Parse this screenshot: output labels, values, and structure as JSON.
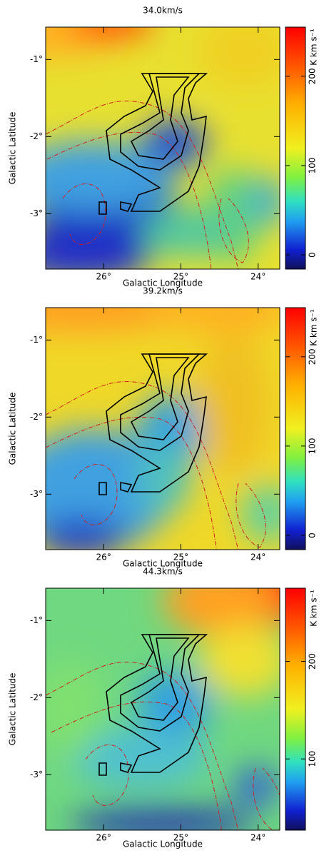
{
  "chart_data": [
    {
      "type": "heatmap",
      "title": "34.0km/s",
      "x_label": "Galactic Longitude",
      "y_label": "Galactic Latitude",
      "xlim": [
        26.75,
        23.72
      ],
      "ylim": [
        -3.72,
        -0.58
      ],
      "xticks": [
        {
          "value": 26,
          "label": "26°"
        },
        {
          "value": 25,
          "label": "25°"
        },
        {
          "value": 24,
          "label": "24°"
        }
      ],
      "yticks": [
        {
          "value": -1,
          "label": "-1°"
        },
        {
          "value": -2,
          "label": "-2°"
        },
        {
          "value": -3,
          "label": "-3°"
        }
      ],
      "colorbar": {
        "label": "K km s⁻¹",
        "lim": [
          -16,
          255
        ],
        "ticks": [
          0,
          100,
          200
        ]
      }
    },
    {
      "type": "heatmap",
      "title": "39.2km/s",
      "x_label": "Galactic Longitude",
      "y_label": "Galactic Latitude",
      "xlim": [
        26.75,
        23.72
      ],
      "ylim": [
        -3.72,
        -0.58
      ],
      "xticks": [
        {
          "value": 26,
          "label": "26°"
        },
        {
          "value": 25,
          "label": "25°"
        },
        {
          "value": 24,
          "label": "24°"
        }
      ],
      "yticks": [
        {
          "value": -1,
          "label": "-1°"
        },
        {
          "value": -2,
          "label": "-2°"
        },
        {
          "value": -3,
          "label": "-3°"
        }
      ],
      "colorbar": {
        "label": "K km s⁻¹",
        "lim": [
          -16,
          255
        ],
        "ticks": [
          0,
          100,
          200
        ]
      }
    },
    {
      "type": "heatmap",
      "title": "44.3km/s",
      "x_label": "Galactic Longitude",
      "y_label": "Galactic Latitude",
      "xlim": [
        26.75,
        23.72
      ],
      "ylim": [
        -3.72,
        -0.58
      ],
      "xticks": [
        {
          "value": 26,
          "label": "26°"
        },
        {
          "value": 25,
          "label": "25°"
        },
        {
          "value": 24,
          "label": "24°"
        }
      ],
      "yticks": [
        {
          "value": -1,
          "label": "-1°"
        },
        {
          "value": -2,
          "label": "-2°"
        },
        {
          "value": -3,
          "label": "-3°"
        }
      ],
      "colorbar": {
        "label": "K km s⁻¹",
        "lim": [
          27,
          275
        ],
        "ticks": [
          100,
          200
        ]
      }
    }
  ]
}
